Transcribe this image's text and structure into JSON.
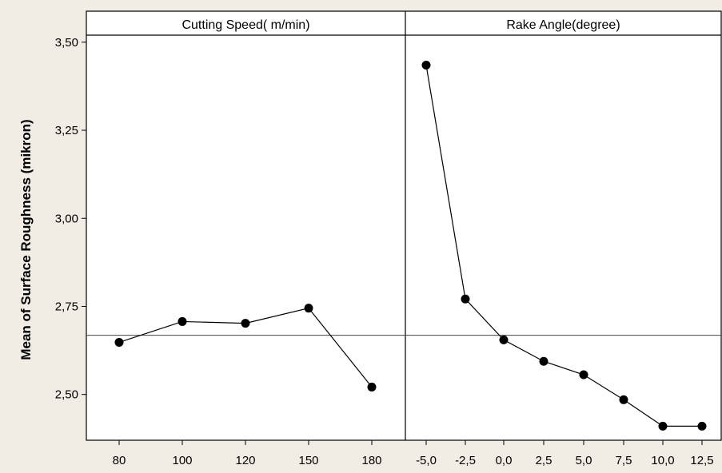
{
  "chart_data": {
    "type": "line",
    "ylabel": "Mean of Surface Roughness (mikron)",
    "ylim": [
      2.37,
      3.52
    ],
    "yticks": [
      2.5,
      2.75,
      3.0,
      3.25,
      3.5
    ],
    "ytick_labels": [
      "2,50",
      "2,75",
      "3,00",
      "3,25",
      "3,50"
    ],
    "reference_mean": 2.668,
    "panels": [
      {
        "title": "Cutting Speed( m/min)",
        "categories": [
          "80",
          "100",
          "120",
          "150",
          "180"
        ],
        "values": [
          2.648,
          2.707,
          2.702,
          2.745,
          2.521
        ]
      },
      {
        "title": "Rake Angle(degree)",
        "categories": [
          "-5,0",
          "-2,5",
          "0,0",
          "2,5",
          "5,0",
          "7,5",
          "10,0",
          "12,5"
        ],
        "values": [
          3.435,
          2.771,
          2.655,
          2.594,
          2.556,
          2.485,
          2.41,
          2.41
        ]
      }
    ],
    "grid": false,
    "legend": "none"
  }
}
